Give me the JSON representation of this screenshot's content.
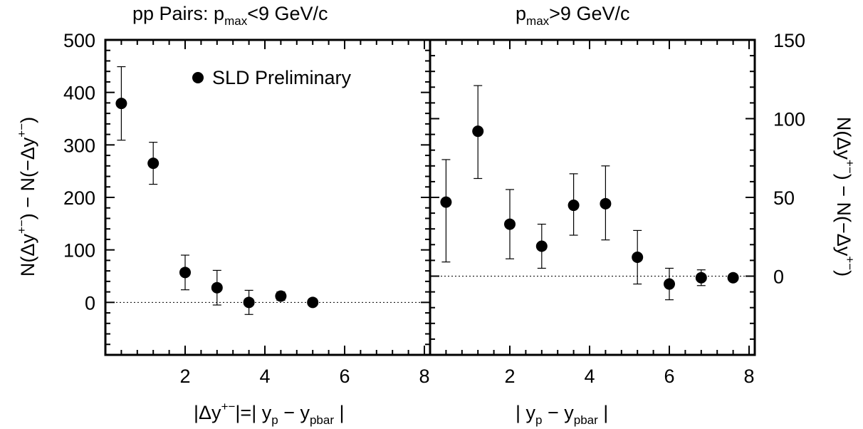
{
  "chart_data": [
    {
      "type": "scatter",
      "title": "pp Pairs:   p<sub>max</sub><9 GeV/c",
      "title_parts": {
        "prefix": "pp Pairs:   p",
        "sub": "max",
        "suffix": "<9 GeV/c"
      },
      "ylabel": "N(Δy+-) − N(−Δy+-)",
      "ylabel_parts": {
        "a": "N(Δy",
        "sup1": "+−",
        "b": ") − N(−Δy",
        "sup2": "+−",
        "c": ")"
      },
      "xlabel_parts": {
        "a": "|Δy",
        "sup": "+−",
        "b": "|=| y",
        "sub1": "p",
        "c": " − y",
        "sub2": "pbar",
        "d": " |"
      },
      "xlim": [
        0,
        8.5
      ],
      "ylim": [
        -100,
        500
      ],
      "x_ticks": [
        2,
        4,
        6,
        8
      ],
      "y_ticks": [
        0,
        100,
        200,
        300,
        400,
        500
      ],
      "legend": {
        "label": "SLD Preliminary",
        "position": "top-right"
      },
      "series": [
        {
          "name": "SLD Preliminary",
          "points": [
            {
              "x": 0.4,
              "y": 379,
              "err_low": 70,
              "err_high": 70
            },
            {
              "x": 1.2,
              "y": 265,
              "err_low": 40,
              "err_high": 40
            },
            {
              "x": 2.0,
              "y": 57,
              "err_low": 33,
              "err_high": 33
            },
            {
              "x": 2.8,
              "y": 28,
              "err_low": 33,
              "err_high": 33
            },
            {
              "x": 3.6,
              "y": 0,
              "err_low": 23,
              "err_high": 23
            },
            {
              "x": 4.4,
              "y": 12,
              "err_low": 8,
              "err_high": 8
            },
            {
              "x": 5.2,
              "y": 0,
              "err_low": 0,
              "err_high": 0
            }
          ]
        }
      ],
      "reference_line": 0
    },
    {
      "type": "scatter",
      "title_parts": {
        "prefix": "p",
        "sub": "max",
        "suffix": ">9 GeV/c"
      },
      "ylabel_parts": {
        "a": "N(Δy",
        "sup1": "+−",
        "b": ") − N(−Δy",
        "sup2": "+−",
        "c": ")"
      },
      "xlabel_parts": {
        "a": "| y",
        "sub1": "p",
        "c": " − y",
        "sub2": "pbar",
        "d": " |"
      },
      "xlim": [
        0,
        8.5
      ],
      "ylim": [
        -50,
        150
      ],
      "x_ticks": [
        2,
        4,
        6,
        8
      ],
      "y_ticks": [
        0,
        50,
        100,
        150
      ],
      "series": [
        {
          "points": [
            {
              "x": 0.4,
              "y": 47,
              "err_low": 38,
              "err_high": 27
            },
            {
              "x": 1.2,
              "y": 92,
              "err_low": 30,
              "err_high": 29
            },
            {
              "x": 2.0,
              "y": 33,
              "err_low": 22,
              "err_high": 22
            },
            {
              "x": 2.8,
              "y": 19,
              "err_low": 14,
              "err_high": 14
            },
            {
              "x": 3.6,
              "y": 45,
              "err_low": 19,
              "err_high": 20
            },
            {
              "x": 4.4,
              "y": 46,
              "err_low": 23,
              "err_high": 24
            },
            {
              "x": 5.2,
              "y": 12,
              "err_low": 17,
              "err_high": 17
            },
            {
              "x": 6.0,
              "y": -5,
              "err_low": 10,
              "err_high": 10
            },
            {
              "x": 6.8,
              "y": -1,
              "err_low": 5,
              "err_high": 5
            },
            {
              "x": 7.6,
              "y": -1,
              "err_low": 0,
              "err_high": 0
            }
          ]
        }
      ],
      "reference_line": 0
    }
  ]
}
